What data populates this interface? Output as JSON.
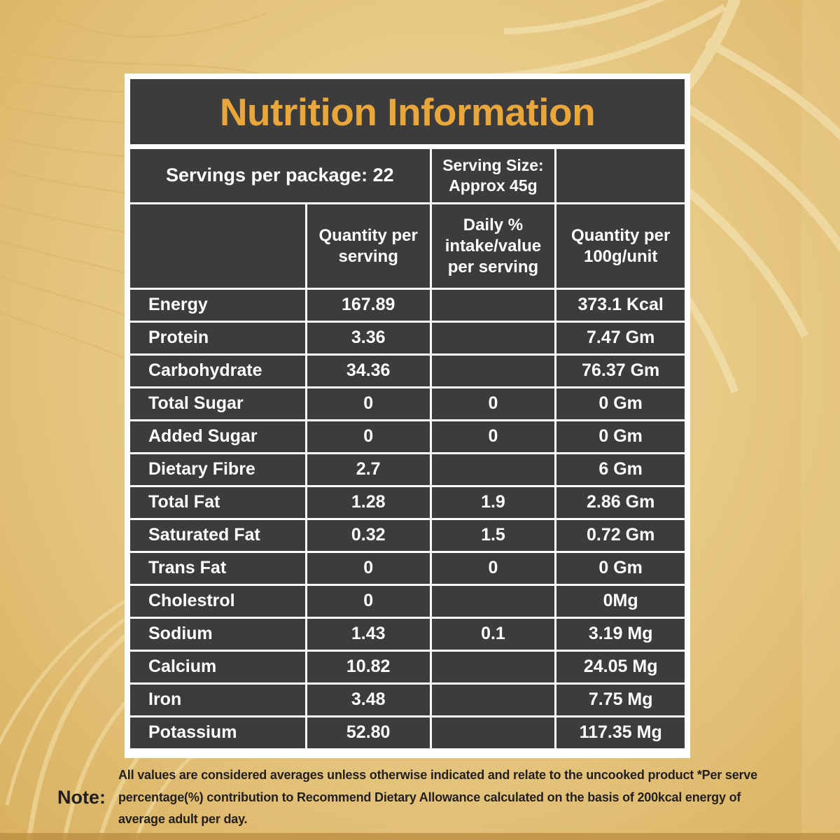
{
  "title": "Nutrition Information",
  "meta": {
    "servings": "Servings per package: 22",
    "serving_size": "Serving Size: Approx 45g"
  },
  "table": {
    "columns": {
      "item": "",
      "per_serving": "Quantity per serving",
      "daily_pct": "Daily % intake/value per serving",
      "per_100g": "Quantity per 100g/unit"
    },
    "rows": [
      {
        "label": "Energy",
        "per_serving": "167.89",
        "daily_pct": "",
        "per_100g": "373.1 Kcal"
      },
      {
        "label": "Protein",
        "per_serving": "3.36",
        "daily_pct": "",
        "per_100g": "7.47 Gm"
      },
      {
        "label": "Carbohydrate",
        "per_serving": "34.36",
        "daily_pct": "",
        "per_100g": "76.37 Gm"
      },
      {
        "label": "Total Sugar",
        "per_serving": "0",
        "daily_pct": "0",
        "per_100g": "0 Gm"
      },
      {
        "label": "Added Sugar",
        "per_serving": "0",
        "daily_pct": "0",
        "per_100g": "0 Gm"
      },
      {
        "label": "Dietary Fibre",
        "per_serving": "2.7",
        "daily_pct": "",
        "per_100g": "6 Gm"
      },
      {
        "label": "Total Fat",
        "per_serving": "1.28",
        "daily_pct": "1.9",
        "per_100g": "2.86 Gm"
      },
      {
        "label": "Saturated Fat",
        "per_serving": "0.32",
        "daily_pct": "1.5",
        "per_100g": "0.72 Gm"
      },
      {
        "label": "Trans Fat",
        "per_serving": "0",
        "daily_pct": "0",
        "per_100g": "0 Gm"
      },
      {
        "label": "Cholestrol",
        "per_serving": "0",
        "daily_pct": "",
        "per_100g": "0Mg"
      },
      {
        "label": "Sodium",
        "per_serving": "1.43",
        "daily_pct": "0.1",
        "per_100g": "3.19 Mg"
      },
      {
        "label": "Calcium",
        "per_serving": "10.82",
        "daily_pct": "",
        "per_100g": "24.05 Mg"
      },
      {
        "label": "Iron",
        "per_serving": "3.48",
        "daily_pct": "",
        "per_100g": "7.75 Mg"
      },
      {
        "label": "Potassium",
        "per_serving": "52.80",
        "daily_pct": "",
        "per_100g": "117.35 Mg"
      }
    ]
  },
  "note": {
    "label": "Note:",
    "text": "All values are considered averages unless otherwise indicated and relate to the uncooked product *Per serve percentage(%) contribution to Recommend Dietary Allowance calculated on the basis of 200kcal energy of average adult per day."
  },
  "colors": {
    "accent_gold": "#e9a63b",
    "cell_dark": "#3c3c3c",
    "grid_white": "#ffffff",
    "background_gold": "#e7c985",
    "note_text": "#231f20"
  }
}
